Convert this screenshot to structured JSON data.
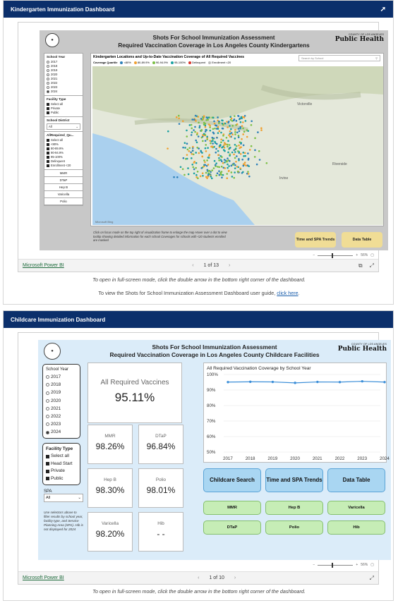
{
  "panel1": {
    "header": "Kindergarten Immunization Dashboard",
    "report": {
      "title_line1": "Shots For School Immunization Assessment",
      "title_line2": "Required Vaccination Coverage in Los Angeles County Kindergartens",
      "logo_small": "COUNTY OF LOS ANGELES",
      "logo_big": "Public Health",
      "school_year_label": "School Year",
      "school_years": [
        "2017",
        "2018",
        "2019",
        "2020",
        "2021",
        "2022",
        "2023",
        "2024"
      ],
      "selected_year": "2024",
      "facility_type_label": "Facility Type",
      "facility_types": [
        "Select all",
        "Private",
        "Public"
      ],
      "school_district_label": "School District",
      "school_district_value": "All",
      "quartile_label": "AllRequired_Qu...",
      "quartiles": [
        "Select all",
        "<80%",
        "80-89.9%",
        "90-94.9%",
        "95-100%",
        "Delinquent",
        "Enrollment <20"
      ],
      "vaccine_buttons": [
        "MMR",
        "DTaP",
        "Hep B",
        "Varicella",
        "Polio"
      ],
      "map_title": "Kindergarten Locations and Up-to-Date Vaccination Coverage of All Required Vaccines",
      "legend_title": "Coverage Quartile",
      "legend_items": [
        "<80%",
        "80-89.9%",
        "90-94.9%",
        "95-100%",
        "Delinquent",
        "Enrollment <20"
      ],
      "legend_colors": [
        "#2c7fb8",
        "#f0a030",
        "#7bbf44",
        "#1aa0a0",
        "#d9352b",
        "#bbbbbb"
      ],
      "search_placeholder": "Search by School",
      "map_help": "Click on focus mode on the top right of visualization frame to enlarge the map Hover over a dot to view tooltip showing detailed information for each school Coverages for schools with <20 students enrolled are masked",
      "btn_trends": "Time and SPA Trends",
      "btn_table": "Data Table",
      "zoom_pct": "56%"
    },
    "footer": {
      "pbi_link": "Microsoft Power BI",
      "pager": "1 of 13"
    },
    "note1": "To open in full-screen mode, click the double arrow in the bottom right corner of the dashboard.",
    "note2_prefix": "To view the Shots for School Immunization Assessment Dashboard user guide,",
    "note2_link": "click here"
  },
  "panel2": {
    "header": "Childcare Immunization Dashboard",
    "report": {
      "title_line1": "Shots For School Immunization Assessment",
      "title_line2": "Required Vaccination Coverage in Los Angeles County Childcare Facilities",
      "logo_small": "COUNTY OF LOS ANGELES",
      "logo_big": "Public Health",
      "school_year_label": "School Year",
      "school_years": [
        "2017",
        "2018",
        "2019",
        "2020",
        "2021",
        "2022",
        "2023",
        "2024"
      ],
      "selected_year": "2024",
      "facility_type_label": "Facility Type",
      "facility_types": [
        "Select all",
        "Head Start",
        "Private",
        "Public"
      ],
      "spa_label": "SPA",
      "spa_value": "All",
      "sidebar_note": "Use selectors above to filter results by school year, facility type, and Service Planning Area (SPA). Hib is not displayed for 2024",
      "big_card": {
        "label": "All Required Vaccines",
        "value": "95.11%"
      },
      "cards": [
        {
          "label": "MMR",
          "value": "98.26%"
        },
        {
          "label": "DTaP",
          "value": "96.84%"
        },
        {
          "label": "Hep B",
          "value": "98.30%"
        },
        {
          "label": "Polio",
          "value": "98.01%"
        },
        {
          "label": "Varicella",
          "value": "98.20%"
        },
        {
          "label": "Hib",
          "value": "- -"
        }
      ],
      "buttons": [
        "Childcare Search",
        "Time and SPA Trends",
        "Data Table"
      ],
      "green_buttons": [
        "MMR",
        "Hep B",
        "Varicella",
        "DTaP",
        "Polio",
        "Hib"
      ],
      "zoom_pct": "56%"
    },
    "footer": {
      "pbi_link": "Microsoft Power BI",
      "pager": "1 of 10"
    },
    "note1": "To open in full-screen mode, click the double arrow in the bottom right corner of the dashboard."
  },
  "chart_data": {
    "type": "line",
    "title": "All Required Vaccination Coverage by School Year",
    "categories": [
      "2017",
      "2018",
      "2019",
      "2020",
      "2021",
      "2022",
      "2023",
      "2024"
    ],
    "values": [
      95.1,
      95.3,
      95.2,
      94.6,
      95.2,
      95.1,
      95.6,
      95.1
    ],
    "ylim": [
      50,
      100
    ],
    "yticks": [
      "50%",
      "60%",
      "70%",
      "80%",
      "90%",
      "100%"
    ],
    "color": "#3b8ed8"
  }
}
